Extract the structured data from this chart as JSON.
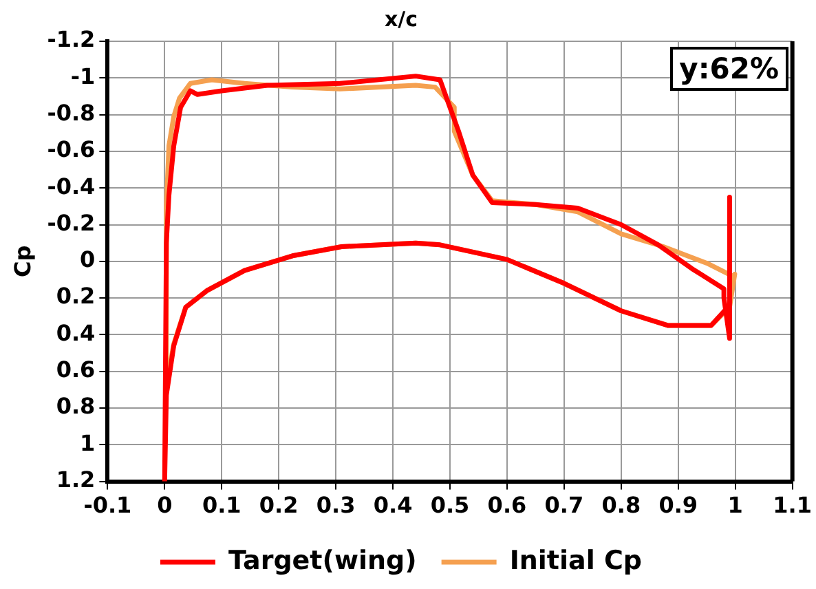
{
  "chart_data": {
    "type": "line",
    "xlabel": "x/c",
    "ylabel": "Cp",
    "annotations": [
      "y:62%"
    ],
    "xlim": [
      -0.1,
      1.1
    ],
    "xticks": [
      -0.1,
      0,
      0.1,
      0.2,
      0.3,
      0.4,
      0.5,
      0.6,
      0.7,
      0.8,
      0.9,
      1,
      1.1
    ],
    "ylim": [
      1.2,
      -1.2
    ],
    "yticks": [
      -1.2,
      -1,
      -0.8,
      -0.6,
      -0.4,
      -0.2,
      0,
      0.2,
      0.4,
      0.6,
      0.8,
      1,
      1.2
    ],
    "grid": true,
    "legend": "bottom",
    "marker": "none",
    "line_style": "solid",
    "series": [
      {
        "name": "Target(wing)",
        "color": "#ff0000",
        "x": [
          0.99,
          0.99,
          0.98,
          0.98,
          0.924,
          0.865,
          0.8,
          0.724,
          0.65,
          0.574,
          0.54,
          0.515,
          0.4825,
          0.44,
          0.3075,
          0.18,
          0.1,
          0.0575,
          0.045,
          0.028,
          0.016,
          0.0075,
          0.003,
          0,
          0.003,
          0.016,
          0.037,
          0.074,
          0.14,
          0.224,
          0.31,
          0.44,
          0.4825,
          0.6,
          0.7,
          0.8,
          0.8825,
          0.9575,
          0.987
        ],
        "values": [
          -0.35,
          0.42,
          0.2,
          0.15,
          0.04,
          -0.09,
          -0.2,
          -0.29,
          -0.31,
          -0.32,
          -0.47,
          -0.71,
          -0.99,
          -1.01,
          -0.97,
          -0.96,
          -0.93,
          -0.91,
          -0.93,
          -0.84,
          -0.63,
          -0.36,
          -0.1,
          1.2,
          0.73,
          0.46,
          0.25,
          0.16,
          0.05,
          -0.03,
          -0.08,
          -0.1,
          -0.09,
          -0.01,
          0.12,
          0.27,
          0.35,
          0.35,
          0.25
        ]
      },
      {
        "name": "Initial Cp",
        "color": "#f5a050",
        "x": [
          0.995,
          0.95,
          0.874,
          0.8,
          0.724,
          0.65,
          0.574,
          0.54,
          0.5075,
          0.5075,
          0.474,
          0.44,
          0.3075,
          0.224,
          0.14,
          0.0825,
          0.045,
          0.026,
          0.016,
          0.0075,
          0.003,
          0.003,
          0.016,
          0.037,
          0.074,
          0.14,
          0.224,
          0.31,
          0.44,
          0.4825,
          0.6,
          0.7,
          0.8,
          0.8825,
          0.9575,
          0.99,
          0.999
        ],
        "values": [
          0.08,
          0.01,
          -0.08,
          -0.15,
          -0.27,
          -0.31,
          -0.33,
          -0.47,
          -0.71,
          -0.84,
          -0.95,
          -0.96,
          -0.94,
          -0.95,
          -0.97,
          -0.99,
          -0.97,
          -0.89,
          -0.79,
          -0.63,
          -0.3,
          0.68,
          0.45,
          0.25,
          0.16,
          0.05,
          -0.03,
          -0.08,
          -0.1,
          -0.09,
          -0.01,
          0.12,
          0.27,
          0.35,
          0.35,
          0.25,
          0.07
        ]
      }
    ]
  }
}
